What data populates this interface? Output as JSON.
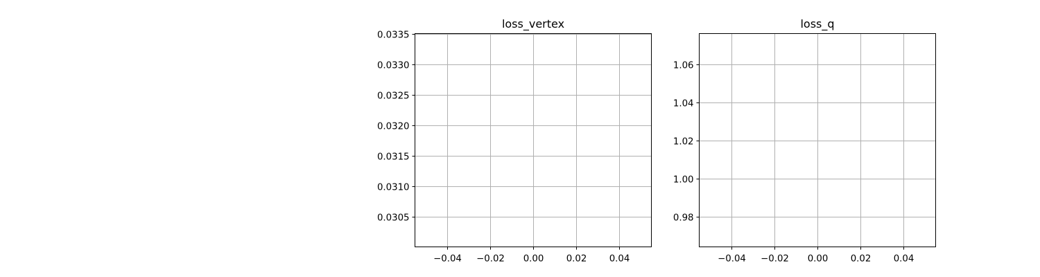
{
  "chart_data": [
    {
      "type": "line",
      "title": "loss_vertex",
      "xlabel": "",
      "ylabel": "",
      "xlim": [
        -0.055,
        0.055
      ],
      "ylim": [
        0.03,
        0.0335
      ],
      "xticks": [
        -0.04,
        -0.02,
        0.0,
        0.02,
        0.04
      ],
      "xtick_labels": [
        "−0.04",
        "−0.02",
        "0.00",
        "0.02",
        "0.04"
      ],
      "yticks": [
        0.0305,
        0.031,
        0.0315,
        0.032,
        0.0325,
        0.033,
        0.0335
      ],
      "ytick_labels": [
        "0.0305",
        "0.0310",
        "0.0315",
        "0.0320",
        "0.0325",
        "0.0330",
        "0.0335"
      ],
      "grid": true,
      "series": []
    },
    {
      "type": "line",
      "title": "loss_q",
      "xlabel": "",
      "ylabel": "",
      "xlim": [
        -0.055,
        0.055
      ],
      "ylim": [
        0.964,
        1.076
      ],
      "xticks": [
        -0.04,
        -0.02,
        0.0,
        0.02,
        0.04
      ],
      "xtick_labels": [
        "−0.04",
        "−0.02",
        "0.00",
        "0.02",
        "0.04"
      ],
      "yticks": [
        0.98,
        1.0,
        1.02,
        1.04,
        1.06
      ],
      "ytick_labels": [
        "0.98",
        "1.00",
        "1.02",
        "1.04",
        "1.06"
      ],
      "grid": true,
      "series": []
    }
  ]
}
